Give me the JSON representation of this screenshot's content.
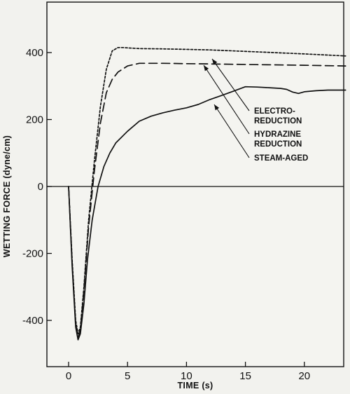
{
  "chart_data": {
    "type": "line",
    "title": "",
    "xlabel": "TIME (s)",
    "ylabel": "WETTING FORCE (dyne/cm)",
    "xlim": [
      -4,
      23.5
    ],
    "ylim": [
      -540,
      530
    ],
    "xticks": [
      0,
      5,
      10,
      15,
      20
    ],
    "xtick_labels": [
      "0",
      "5",
      "10",
      "15",
      "20"
    ],
    "yticks": [
      -400,
      -200,
      0,
      200,
      400
    ],
    "ytick_labels": [
      "-400",
      "-200",
      "0",
      "200",
      "400"
    ],
    "grid": false,
    "zero_line": true,
    "legend": "none",
    "series": [
      {
        "name": "ELECTRO-REDUCTION",
        "style": "dotted",
        "x": [
          0,
          0.3,
          0.6,
          0.8,
          1.0,
          1.3,
          1.7,
          2.2,
          2.7,
          3.2,
          3.7,
          4.2,
          4.6,
          5.0,
          6.0,
          8.0,
          12.0,
          16.0,
          20.0,
          23.5
        ],
        "y": [
          0,
          -220,
          -400,
          -440,
          -420,
          -300,
          -100,
          80,
          240,
          350,
          405,
          415,
          415,
          414,
          412,
          411,
          408,
          402,
          396,
          390
        ]
      },
      {
        "name": "HYDRAZINE REDUCTION",
        "style": "dashed",
        "x": [
          0,
          0.3,
          0.6,
          0.8,
          1.0,
          1.3,
          1.7,
          2.2,
          2.7,
          3.2,
          3.7,
          4.2,
          5.0,
          6.0,
          8.0,
          10.0,
          12.0,
          16.0,
          20.0,
          23.5
        ],
        "y": [
          0,
          -230,
          -410,
          -450,
          -430,
          -310,
          -120,
          50,
          190,
          280,
          320,
          342,
          360,
          368,
          368,
          367,
          366,
          364,
          362,
          360
        ]
      },
      {
        "name": "STEAM-AGED",
        "style": "solid",
        "x": [
          0,
          0.3,
          0.6,
          0.8,
          1.0,
          1.3,
          1.6,
          2.0,
          2.5,
          3.0,
          3.5,
          4.0,
          5.0,
          6.0,
          7.0,
          8.0,
          9.0,
          10.0,
          11.0,
          12.0,
          13.0,
          14.0,
          15.0,
          16.0,
          17.0,
          18.0,
          18.5,
          19.0,
          19.5,
          20.0,
          21.0,
          22.0,
          23.5
        ],
        "y": [
          0,
          -240,
          -420,
          -458,
          -440,
          -350,
          -220,
          -100,
          0,
          60,
          100,
          130,
          165,
          195,
          210,
          220,
          228,
          235,
          245,
          260,
          272,
          285,
          298,
          297,
          295,
          293,
          290,
          282,
          278,
          283,
          286,
          288,
          288
        ]
      }
    ],
    "annotations": [
      {
        "lines": [
          "ELECTRO-",
          "REDUCTION"
        ],
        "series": "ELECTRO-REDUCTION"
      },
      {
        "lines": [
          "HYDRAZINE",
          "REDUCTION"
        ],
        "series": "HYDRAZINE REDUCTION"
      },
      {
        "lines": [
          "STEAM-AGED"
        ],
        "series": "STEAM-AGED"
      }
    ]
  }
}
